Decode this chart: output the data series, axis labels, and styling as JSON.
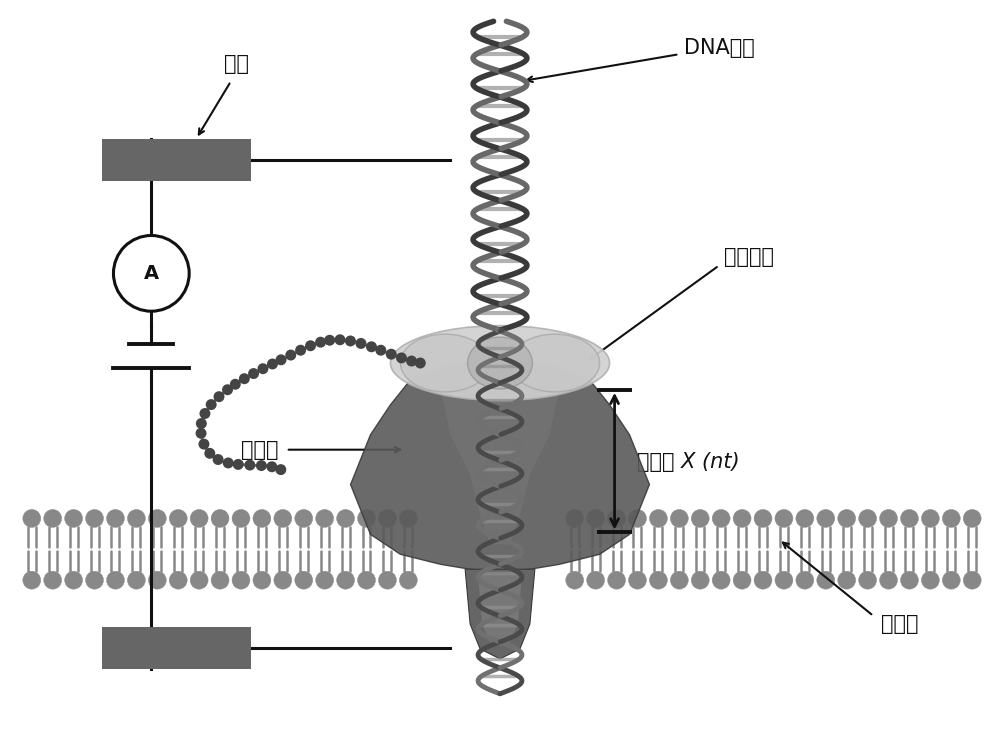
{
  "fig_width": 10.0,
  "fig_height": 7.35,
  "bg_color": "#ffffff",
  "label_dianji": "电极",
  "label_DNA": "DNA分子",
  "label_motor": "分子马达",
  "label_nanopore": "纳米孔",
  "label_shift": "偏移量 X (nt)",
  "label_membrane": "支撟膜",
  "electrode_color": "#666666",
  "circuit_color": "#111111",
  "membrane_color": "#888888",
  "nanopore_color": "#555555",
  "motor_color": "#cccccc",
  "text_color": "#111111",
  "font_size_label": 15,
  "font_size_A": 14,
  "dna_strand1_color": "#555555",
  "dna_strand2_color": "#888888",
  "dna_rung_color": "#999999"
}
